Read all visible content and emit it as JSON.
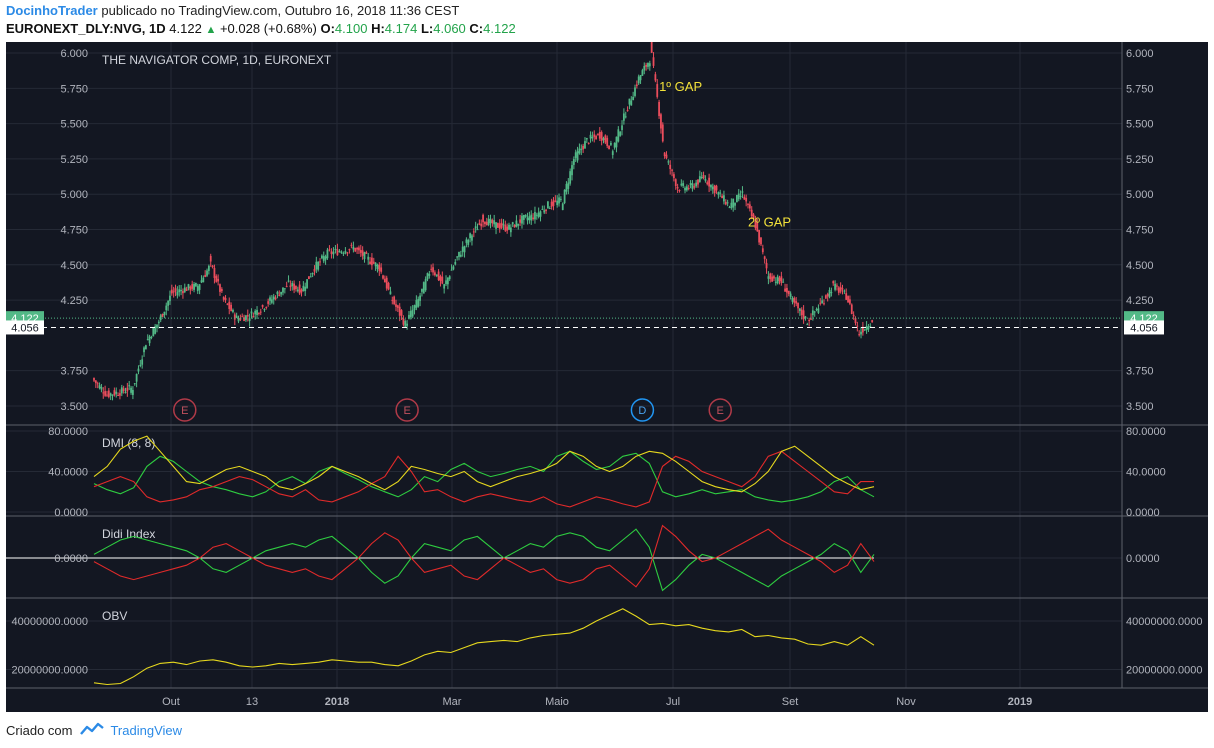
{
  "header": {
    "author": "DocinhoTrader",
    "published_text": "publicado no TradingView.com, Outubro 16, 2018 11:36 CEST",
    "symbol": "EURONEXT_DLY:NVG, 1D",
    "last": "4.122",
    "change": "+0.028 (+0.68%)",
    "o_label": "O:",
    "o": "4.100",
    "h_label": "H:",
    "h": "4.174",
    "l_label": "L:",
    "l": "4.060",
    "c_label": "C:",
    "c": "4.122"
  },
  "footer": {
    "created": "Criado com",
    "brand": "TradingView"
  },
  "colors": {
    "background": "#131722",
    "up": "#53b987",
    "down": "#eb4d5c",
    "dmi_plus": "#2ecc40",
    "dmi_minus": "#e02a2a",
    "adx": "#e6d81e",
    "obv": "#e6d81e",
    "grid": "#252a36",
    "last_price": "#53b987",
    "annotation": "#f3e23a"
  },
  "chart_data": [
    {
      "type": "candlestick",
      "title": "THE NAVIGATOR COMP, 1D, EURONEXT",
      "ylim": [
        3.45,
        6.05
      ],
      "yticks": [
        "6.000",
        "5.750",
        "5.500",
        "5.250",
        "5.000",
        "4.750",
        "4.500",
        "4.250",
        "3.750",
        "3.500"
      ],
      "x_labels": [
        "Out",
        "13",
        "2018",
        "Mar",
        "Maio",
        "Jul",
        "Set",
        "Nov",
        "2019"
      ],
      "x_label_bold": [
        "2018",
        "2019"
      ],
      "last_price_label": "4.122",
      "reference_price_label": "4.056",
      "annotations": [
        {
          "text": "1º GAP",
          "date": "2018-06-22",
          "price": 5.73
        },
        {
          "text": "2º GAP",
          "date": "2018-08-09",
          "price": 4.77
        }
      ],
      "event_markers": [
        {
          "label": "E",
          "date": "2017-10-09",
          "kind": "earnings"
        },
        {
          "label": "E",
          "date": "2018-02-06",
          "kind": "earnings"
        },
        {
          "label": "D",
          "date": "2018-06-13",
          "kind": "dividend"
        },
        {
          "label": "E",
          "date": "2018-07-25",
          "kind": "earnings"
        }
      ],
      "close_path": [
        [
          "2017-08-21",
          3.68
        ],
        [
          "2017-08-28",
          3.58
        ],
        [
          "2017-09-04",
          3.6
        ],
        [
          "2017-09-11",
          3.63
        ],
        [
          "2017-09-18",
          3.95
        ],
        [
          "2017-09-25",
          4.1
        ],
        [
          "2017-10-02",
          4.3
        ],
        [
          "2017-10-09",
          4.33
        ],
        [
          "2017-10-16",
          4.35
        ],
        [
          "2017-10-23",
          4.5
        ],
        [
          "2017-10-30",
          4.25
        ],
        [
          "2017-11-06",
          4.12
        ],
        [
          "2017-11-13",
          4.14
        ],
        [
          "2017-11-20",
          4.2
        ],
        [
          "2017-11-27",
          4.28
        ],
        [
          "2017-12-04",
          4.36
        ],
        [
          "2017-12-11",
          4.32
        ],
        [
          "2017-12-18",
          4.48
        ],
        [
          "2017-12-25",
          4.58
        ],
        [
          "2018-01-08",
          4.62
        ],
        [
          "2018-01-15",
          4.55
        ],
        [
          "2018-01-22",
          4.48
        ],
        [
          "2018-01-29",
          4.25
        ],
        [
          "2018-02-05",
          4.08
        ],
        [
          "2018-02-12",
          4.25
        ],
        [
          "2018-02-19",
          4.48
        ],
        [
          "2018-02-26",
          4.35
        ],
        [
          "2018-03-05",
          4.55
        ],
        [
          "2018-03-12",
          4.7
        ],
        [
          "2018-03-19",
          4.82
        ],
        [
          "2018-03-26",
          4.78
        ],
        [
          "2018-04-02",
          4.76
        ],
        [
          "2018-04-09",
          4.82
        ],
        [
          "2018-04-16",
          4.85
        ],
        [
          "2018-04-23",
          4.92
        ],
        [
          "2018-05-01",
          4.96
        ],
        [
          "2018-05-07",
          5.25
        ],
        [
          "2018-05-14",
          5.38
        ],
        [
          "2018-05-21",
          5.42
        ],
        [
          "2018-05-28",
          5.32
        ],
        [
          "2018-06-04",
          5.58
        ],
        [
          "2018-06-11",
          5.82
        ],
        [
          "2018-06-18",
          5.98
        ],
        [
          "2018-06-25",
          5.28
        ],
        [
          "2018-07-02",
          5.05
        ],
        [
          "2018-07-09",
          5.05
        ],
        [
          "2018-07-16",
          5.12
        ],
        [
          "2018-07-23",
          5.02
        ],
        [
          "2018-07-30",
          4.92
        ],
        [
          "2018-08-06",
          5.0
        ],
        [
          "2018-08-13",
          4.78
        ],
        [
          "2018-08-20",
          4.42
        ],
        [
          "2018-08-27",
          4.38
        ],
        [
          "2018-09-03",
          4.22
        ],
        [
          "2018-09-10",
          4.1
        ],
        [
          "2018-09-17",
          4.22
        ],
        [
          "2018-09-24",
          4.35
        ],
        [
          "2018-10-01",
          4.28
        ],
        [
          "2018-10-08",
          4.02
        ],
        [
          "2018-10-16",
          4.12
        ]
      ]
    },
    {
      "type": "line",
      "title": "DMI (8, 8)",
      "ylim": [
        0,
        80
      ],
      "yticks": [
        "80.0000",
        "40.0000",
        "0.0000"
      ],
      "series": [
        {
          "name": "+DI",
          "values": [
            28,
            22,
            18,
            24,
            45,
            55,
            50,
            40,
            30,
            25,
            22,
            18,
            15,
            20,
            30,
            35,
            28,
            40,
            45,
            38,
            32,
            25,
            20,
            15,
            22,
            35,
            30,
            42,
            48,
            40,
            35,
            38,
            42,
            45,
            40,
            55,
            60,
            50,
            42,
            45,
            55,
            58,
            48,
            20,
            15,
            18,
            22,
            18,
            20,
            22,
            15,
            12,
            10,
            12,
            15,
            20,
            30,
            35,
            22,
            15
          ]
        },
        {
          "name": "-DI",
          "values": [
            25,
            30,
            35,
            30,
            15,
            10,
            12,
            15,
            22,
            25,
            30,
            35,
            32,
            25,
            18,
            15,
            22,
            12,
            10,
            15,
            20,
            28,
            35,
            55,
            40,
            20,
            22,
            15,
            10,
            15,
            18,
            15,
            12,
            10,
            15,
            8,
            5,
            10,
            15,
            12,
            8,
            5,
            10,
            45,
            55,
            50,
            40,
            35,
            30,
            25,
            35,
            55,
            60,
            50,
            40,
            30,
            20,
            18,
            30,
            30
          ]
        },
        {
          "name": "ADX",
          "values": [
            35,
            45,
            62,
            70,
            75,
            60,
            45,
            30,
            28,
            35,
            42,
            45,
            40,
            35,
            25,
            22,
            28,
            35,
            45,
            40,
            35,
            28,
            22,
            30,
            45,
            42,
            38,
            35,
            40,
            30,
            25,
            30,
            35,
            38,
            42,
            48,
            60,
            55,
            45,
            40,
            45,
            55,
            60,
            58,
            50,
            40,
            30,
            25,
            22,
            20,
            28,
            40,
            60,
            65,
            55,
            45,
            35,
            28,
            22,
            25
          ]
        }
      ]
    },
    {
      "type": "line",
      "title": "Didi Index",
      "ylim": [
        -1,
        1
      ],
      "yticks": [
        "0.0000"
      ],
      "series": [
        {
          "name": "Didi +",
          "values": [
            0.1,
            0.3,
            0.5,
            0.6,
            0.5,
            0.4,
            0.3,
            0.2,
            0.0,
            -0.3,
            -0.4,
            -0.2,
            0.0,
            0.2,
            0.3,
            0.4,
            0.3,
            0.5,
            0.6,
            0.3,
            0.0,
            -0.4,
            -0.7,
            -0.5,
            0.0,
            0.4,
            0.3,
            0.2,
            0.5,
            0.6,
            0.3,
            0.0,
            0.2,
            0.4,
            0.3,
            0.6,
            0.7,
            0.6,
            0.3,
            0.2,
            0.5,
            0.8,
            0.3,
            -0.9,
            -0.6,
            -0.2,
            0.1,
            0.0,
            -0.2,
            -0.4,
            -0.6,
            -0.8,
            -0.5,
            -0.3,
            -0.1,
            0.1,
            0.4,
            0.2,
            -0.4,
            0.1
          ]
        },
        {
          "name": "Didi -",
          "values": [
            -0.1,
            -0.3,
            -0.5,
            -0.6,
            -0.5,
            -0.4,
            -0.3,
            -0.2,
            0.0,
            0.3,
            0.4,
            0.2,
            0.0,
            -0.2,
            -0.3,
            -0.4,
            -0.3,
            -0.5,
            -0.6,
            -0.3,
            0.0,
            0.4,
            0.7,
            0.5,
            0.0,
            -0.4,
            -0.3,
            -0.2,
            -0.5,
            -0.6,
            -0.3,
            0.0,
            -0.2,
            -0.4,
            -0.3,
            -0.6,
            -0.7,
            -0.6,
            -0.3,
            -0.2,
            -0.5,
            -0.8,
            -0.3,
            0.9,
            0.6,
            0.2,
            -0.1,
            0.0,
            0.2,
            0.4,
            0.6,
            0.8,
            0.5,
            0.3,
            0.1,
            -0.1,
            -0.4,
            -0.2,
            0.4,
            -0.1
          ]
        }
      ]
    },
    {
      "type": "line",
      "title": "OBV",
      "ylim": [
        14000000,
        47000000
      ],
      "yticks": [
        "40000000.0000",
        "20000000.0000"
      ],
      "series": [
        {
          "name": "OBV",
          "values": [
            14500000,
            13800000,
            14200000,
            17000000,
            20500000,
            22500000,
            23000000,
            22000000,
            23500000,
            24000000,
            23000000,
            21500000,
            21000000,
            21500000,
            22500000,
            22000000,
            22500000,
            23000000,
            24000000,
            23500000,
            23000000,
            23000000,
            22000000,
            21500000,
            23500000,
            26000000,
            27500000,
            27000000,
            29000000,
            31000000,
            31500000,
            32000000,
            31500000,
            33000000,
            34000000,
            34500000,
            35000000,
            37000000,
            40000000,
            42500000,
            45000000,
            42000000,
            38500000,
            39000000,
            38000000,
            38500000,
            37000000,
            36000000,
            35500000,
            36500000,
            33500000,
            34000000,
            33000000,
            32500000,
            30500000,
            30000000,
            31500000,
            30000000,
            33500000,
            30000000
          ]
        }
      ]
    }
  ]
}
